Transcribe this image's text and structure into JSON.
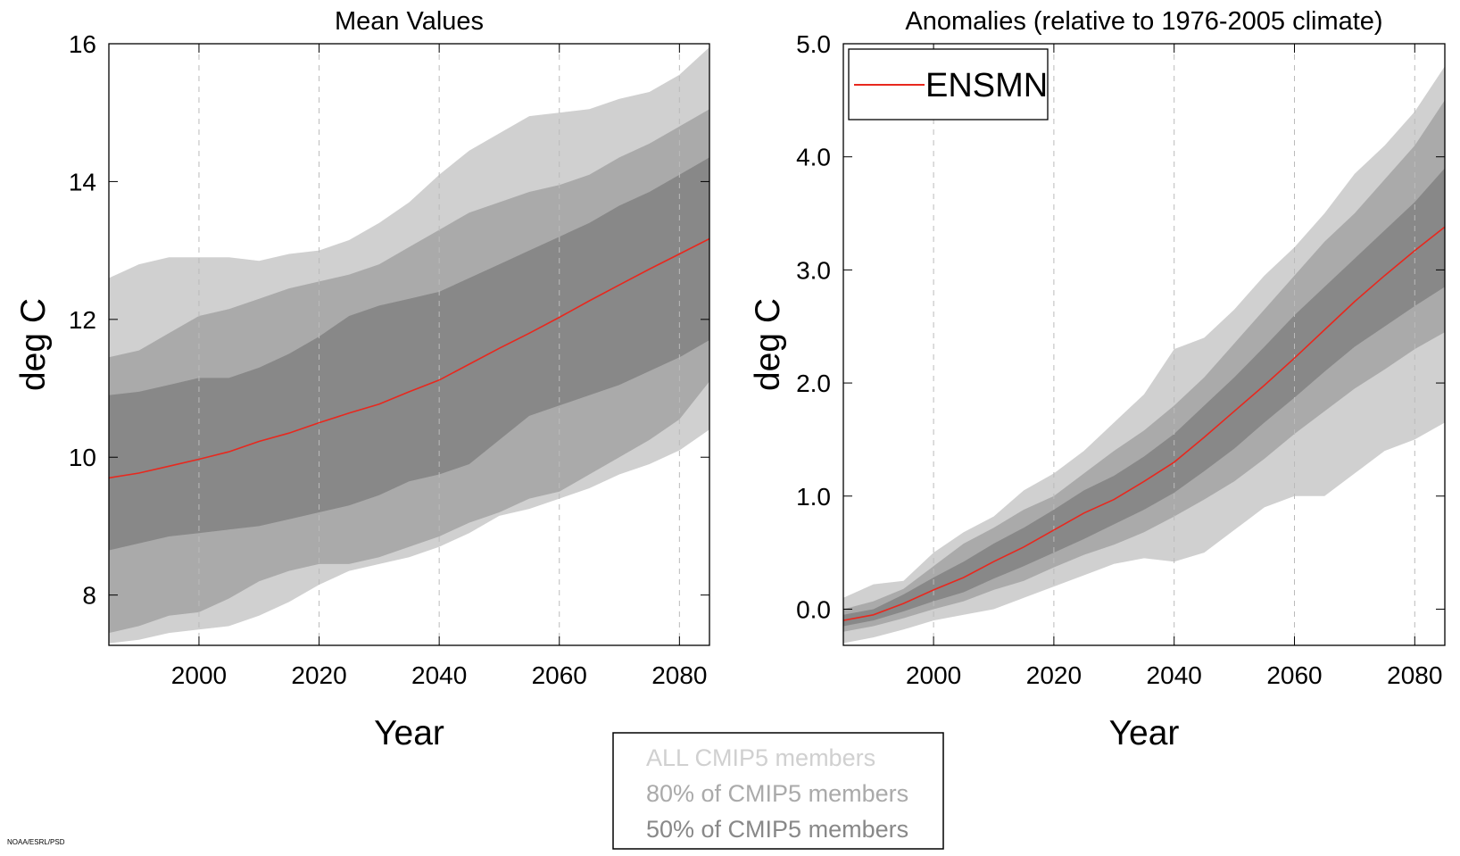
{
  "chart_data": [
    {
      "type": "band",
      "title": "Mean Values",
      "xlabel": "Year",
      "ylabel": "deg C",
      "x": [
        1985,
        1990,
        1995,
        2000,
        2005,
        2010,
        2015,
        2020,
        2025,
        2030,
        2035,
        2040,
        2045,
        2050,
        2055,
        2060,
        2065,
        2070,
        2075,
        2080,
        2085
      ],
      "xlim": [
        1985,
        2085
      ],
      "xticks": [
        2000,
        2020,
        2040,
        2060,
        2080
      ],
      "ylim": [
        7.27,
        16.0
      ],
      "yticks": [
        8,
        10,
        12,
        14,
        16
      ],
      "grid": "x",
      "series": [
        {
          "name": "ALL CMIP5 members",
          "color": "#d0d0d0",
          "upper": [
            12.6,
            12.8,
            12.9,
            12.9,
            12.9,
            12.85,
            12.95,
            13.0,
            13.15,
            13.4,
            13.7,
            14.1,
            14.45,
            14.7,
            14.95,
            15.0,
            15.05,
            15.2,
            15.3,
            15.55,
            15.95
          ],
          "lower": [
            7.3,
            7.35,
            7.45,
            7.5,
            7.55,
            7.7,
            7.9,
            8.15,
            8.35,
            8.45,
            8.55,
            8.7,
            8.9,
            9.15,
            9.25,
            9.4,
            9.55,
            9.75,
            9.9,
            10.1,
            10.4
          ]
        },
        {
          "name": "80% of CMIP5 members",
          "color": "#aaaaaa",
          "upper": [
            11.45,
            11.55,
            11.8,
            12.05,
            12.15,
            12.3,
            12.45,
            12.55,
            12.65,
            12.8,
            13.05,
            13.3,
            13.55,
            13.7,
            13.85,
            13.95,
            14.1,
            14.35,
            14.55,
            14.8,
            15.05
          ],
          "lower": [
            7.45,
            7.55,
            7.7,
            7.75,
            7.95,
            8.2,
            8.35,
            8.45,
            8.45,
            8.55,
            8.7,
            8.85,
            9.05,
            9.2,
            9.4,
            9.5,
            9.75,
            10.0,
            10.25,
            10.55,
            11.1
          ]
        },
        {
          "name": "50% of CMIP5 members",
          "color": "#888888",
          "upper": [
            10.9,
            10.95,
            11.05,
            11.15,
            11.15,
            11.3,
            11.5,
            11.75,
            12.05,
            12.2,
            12.3,
            12.4,
            12.6,
            12.8,
            13.0,
            13.2,
            13.4,
            13.65,
            13.85,
            14.1,
            14.35
          ],
          "lower": [
            8.65,
            8.75,
            8.85,
            8.9,
            8.95,
            9.0,
            9.1,
            9.2,
            9.3,
            9.45,
            9.65,
            9.75,
            9.9,
            10.25,
            10.6,
            10.75,
            10.9,
            11.05,
            11.25,
            11.45,
            11.7
          ]
        },
        {
          "color": "#e8281e",
          "values": [
            9.7,
            9.77,
            9.87,
            9.97,
            10.08,
            10.23,
            10.35,
            10.5,
            10.64,
            10.77,
            10.95,
            11.12,
            11.35,
            11.58,
            11.8,
            12.03,
            12.27,
            12.5,
            12.73,
            12.95,
            13.17
          ]
        }
      ]
    },
    {
      "type": "band",
      "title": "Anomalies (relative to 1976-2005 climate)",
      "xlabel": "Year",
      "ylabel": "deg C",
      "x": [
        1985,
        1990,
        1995,
        2000,
        2005,
        2010,
        2015,
        2020,
        2025,
        2030,
        2035,
        2040,
        2045,
        2050,
        2055,
        2060,
        2065,
        2070,
        2075,
        2080,
        2085
      ],
      "xlim": [
        1985,
        2085
      ],
      "xticks": [
        2000,
        2020,
        2040,
        2060,
        2080
      ],
      "ylim": [
        -0.32,
        5.0
      ],
      "yticks": [
        {
          "value": 0,
          "label": "0.0"
        },
        {
          "value": 1,
          "label": "1.0"
        },
        {
          "value": 2,
          "label": "2.0"
        },
        {
          "value": 3,
          "label": "3.0"
        },
        {
          "value": 4,
          "label": "4.0"
        },
        {
          "value": 5,
          "label": "5.0"
        }
      ],
      "grid": "x",
      "legend": "upper left",
      "series": [
        {
          "color": "#d0d0d0",
          "upper": [
            0.1,
            0.22,
            0.25,
            0.5,
            0.68,
            0.82,
            1.05,
            1.2,
            1.4,
            1.65,
            1.9,
            2.3,
            2.4,
            2.65,
            2.95,
            3.2,
            3.5,
            3.85,
            4.1,
            4.4,
            4.8
          ],
          "lower": [
            -0.3,
            -0.25,
            -0.18,
            -0.1,
            -0.05,
            0.0,
            0.1,
            0.2,
            0.3,
            0.4,
            0.45,
            0.42,
            0.5,
            0.7,
            0.9,
            1.0,
            1.0,
            1.2,
            1.4,
            1.5,
            1.65
          ]
        },
        {
          "color": "#aaaaaa",
          "upper": [
            0.0,
            0.07,
            0.18,
            0.38,
            0.58,
            0.72,
            0.88,
            1.0,
            1.2,
            1.4,
            1.58,
            1.8,
            2.05,
            2.35,
            2.65,
            2.95,
            3.25,
            3.5,
            3.8,
            4.1,
            4.5
          ],
          "lower": [
            -0.2,
            -0.15,
            -0.08,
            0.0,
            0.07,
            0.17,
            0.25,
            0.37,
            0.48,
            0.57,
            0.68,
            0.82,
            0.97,
            1.13,
            1.33,
            1.55,
            1.75,
            1.95,
            2.12,
            2.3,
            2.45
          ]
        },
        {
          "color": "#888888",
          "upper": [
            -0.05,
            0.0,
            0.13,
            0.28,
            0.42,
            0.58,
            0.72,
            0.88,
            1.05,
            1.18,
            1.35,
            1.55,
            1.8,
            2.05,
            2.32,
            2.6,
            2.85,
            3.1,
            3.35,
            3.6,
            3.9
          ],
          "lower": [
            -0.15,
            -0.1,
            -0.02,
            0.07,
            0.15,
            0.27,
            0.38,
            0.5,
            0.62,
            0.75,
            0.88,
            1.03,
            1.22,
            1.42,
            1.65,
            1.87,
            2.1,
            2.32,
            2.5,
            2.68,
            2.85
          ]
        },
        {
          "name": "ENSMN",
          "color": "#e8281e",
          "values": [
            -0.1,
            -0.05,
            0.05,
            0.17,
            0.28,
            0.42,
            0.55,
            0.7,
            0.85,
            0.97,
            1.13,
            1.3,
            1.52,
            1.75,
            1.98,
            2.22,
            2.47,
            2.72,
            2.95,
            3.17,
            3.38
          ]
        }
      ]
    }
  ],
  "credit": "NOAA/ESRL/PSD"
}
